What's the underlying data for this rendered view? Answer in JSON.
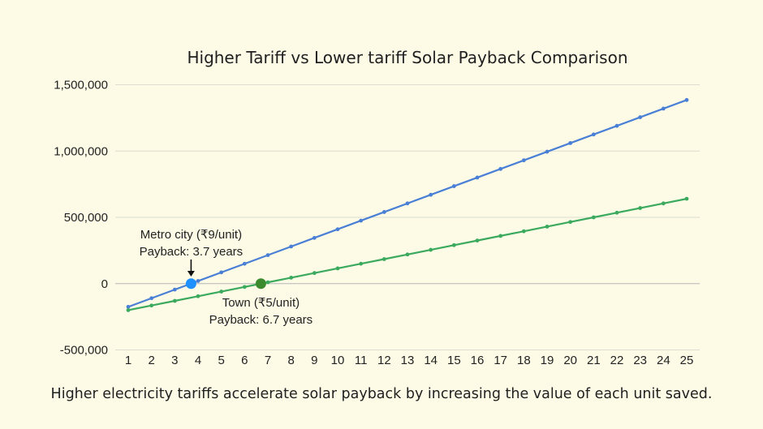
{
  "chart_data": {
    "type": "line",
    "title": "Higher Tariff vs Lower tariff Solar Payback Comparison",
    "xlabel": "",
    "ylabel": "",
    "x": [
      1,
      2,
      3,
      4,
      5,
      6,
      7,
      8,
      9,
      10,
      11,
      12,
      13,
      14,
      15,
      16,
      17,
      18,
      19,
      20,
      21,
      22,
      23,
      24,
      25
    ],
    "xlim": [
      1,
      25
    ],
    "ylim": [
      -500000,
      1500000
    ],
    "yticks": [
      -500000,
      0,
      500000,
      1000000,
      1500000
    ],
    "ytick_labels": [
      "-500,000",
      "0",
      "500,000",
      "1,000,000",
      "1,500,000"
    ],
    "grid": true,
    "legend": "none",
    "series": [
      {
        "name": "",
        "color": "#4A7FD6",
        "values": [
          -175000,
          -110000,
          -45000,
          20000,
          85000,
          150000,
          215000,
          280000,
          345000,
          410000,
          475000,
          540000,
          605000,
          670000,
          735000,
          800000,
          865000,
          930000,
          995000,
          1060000,
          1125000,
          1190000,
          1255000,
          1320000,
          1385000
        ]
      },
      {
        "name": "",
        "color": "#3BAA5E",
        "values": [
          -200000,
          -165000,
          -130000,
          -95000,
          -60000,
          -25000,
          10000,
          45000,
          80000,
          115000,
          150000,
          185000,
          220000,
          255000,
          290000,
          325000,
          360000,
          395000,
          430000,
          465000,
          500000,
          535000,
          570000,
          605000,
          640000
        ]
      }
    ],
    "annotations": [
      {
        "lines": [
          "Metro city (₹9/unit)",
          "Payback: 3.7 years"
        ],
        "x": 3.7,
        "y": 0,
        "marker_color": "#1E90FF",
        "arrow": true
      },
      {
        "lines": [
          "Town (₹5/unit)",
          "Payback: 6.7 years"
        ],
        "x": 6.7,
        "y": 0,
        "marker_color": "#3C8A2E",
        "arrow": false
      }
    ],
    "caption": "Higher electricity tariffs accelerate solar payback by increasing the value of each unit saved."
  }
}
